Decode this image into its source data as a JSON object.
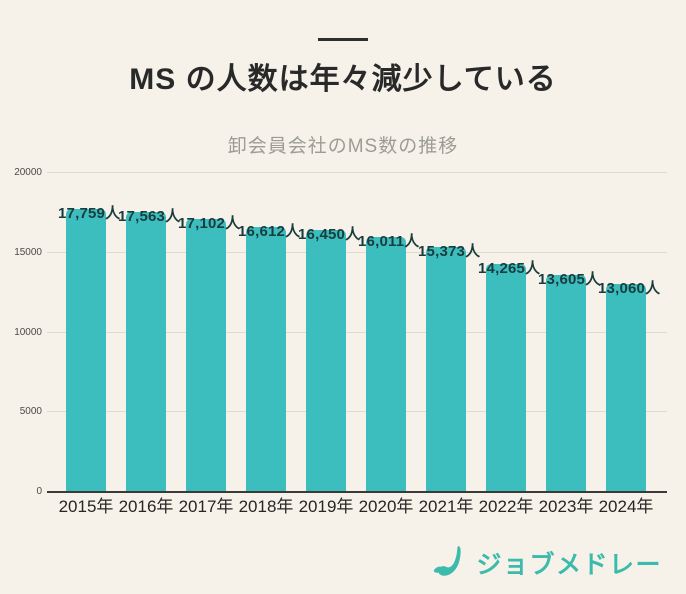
{
  "page": {
    "background": "#F6F2E9"
  },
  "header": {
    "title": "MS の人数は年々減少している",
    "subtitle": "卸会員会社のMS数の推移"
  },
  "chart_data": {
    "type": "bar",
    "title": "卸会員会社のMS数の推移",
    "categories": [
      "2015年",
      "2016年",
      "2017年",
      "2018年",
      "2019年",
      "2020年",
      "2021年",
      "2022年",
      "2023年",
      "2024年"
    ],
    "values": [
      17759,
      17563,
      17102,
      16612,
      16450,
      16011,
      15373,
      14265,
      13605,
      13060
    ],
    "data_labels": [
      "17,759人",
      "17,563人",
      "17,102人",
      "16,612人",
      "16,450人",
      "16,011人",
      "15,373人",
      "14,265人",
      "13,605人",
      "13,060人"
    ],
    "xlabel": "",
    "ylabel": "",
    "ylim": [
      0,
      20000
    ],
    "yticks": [
      0,
      5000,
      10000,
      15000,
      20000
    ],
    "grid": true,
    "legend": false,
    "bar_color": "#3CBEBE",
    "value_label_color": "#1B3C3E"
  },
  "footer": {
    "logo_text": "ジョブメドレー",
    "logo_color": "#3CBBAC",
    "logo_icon": "jobmedley-j-icon"
  }
}
